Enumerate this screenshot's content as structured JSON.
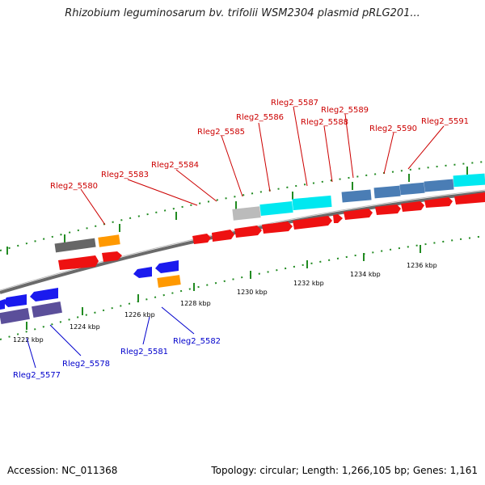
{
  "title": "Rhizobium leguminosarum bv. trifolii WSM2304 plasmid pRLG201...",
  "footer": {
    "accession": "Accession: NC_011368",
    "summary": "Topology: circular; Length: 1,266,105 bp; Genes: 1,161"
  },
  "scale_labels": [
    "1222 kbp",
    "1224 kbp",
    "1226 kbp",
    "1228 kbp",
    "1230 kbp",
    "1232 kbp",
    "1234 kbp",
    "1236 kbp"
  ],
  "gene_labels_top": [
    "Rleg2_5580",
    "Rleg2_5583",
    "Rleg2_5584",
    "Rleg2_5585",
    "Rleg2_5586",
    "Rleg2_5587",
    "Rleg2_5588",
    "Rleg2_5589",
    "Rleg2_5590",
    "Rleg2_5591"
  ],
  "gene_labels_bottom": [
    "Rleg2_5577",
    "Rleg2_5578",
    "Rleg2_5581",
    "Rleg2_5582"
  ],
  "colors": {
    "cds": "#ee1111",
    "minus_strand": "#1a1aee",
    "rna": "#ff9900",
    "hit_gray": "#666666",
    "hit_light": "#bbbbbb",
    "hit_cyan": "#00e8f0",
    "hit_steel": "#4a7db5",
    "hit_purple": "#5b4f9a",
    "label_top": "#cc0000",
    "label_bottom": "#0000cc",
    "tick": "#228b22"
  }
}
